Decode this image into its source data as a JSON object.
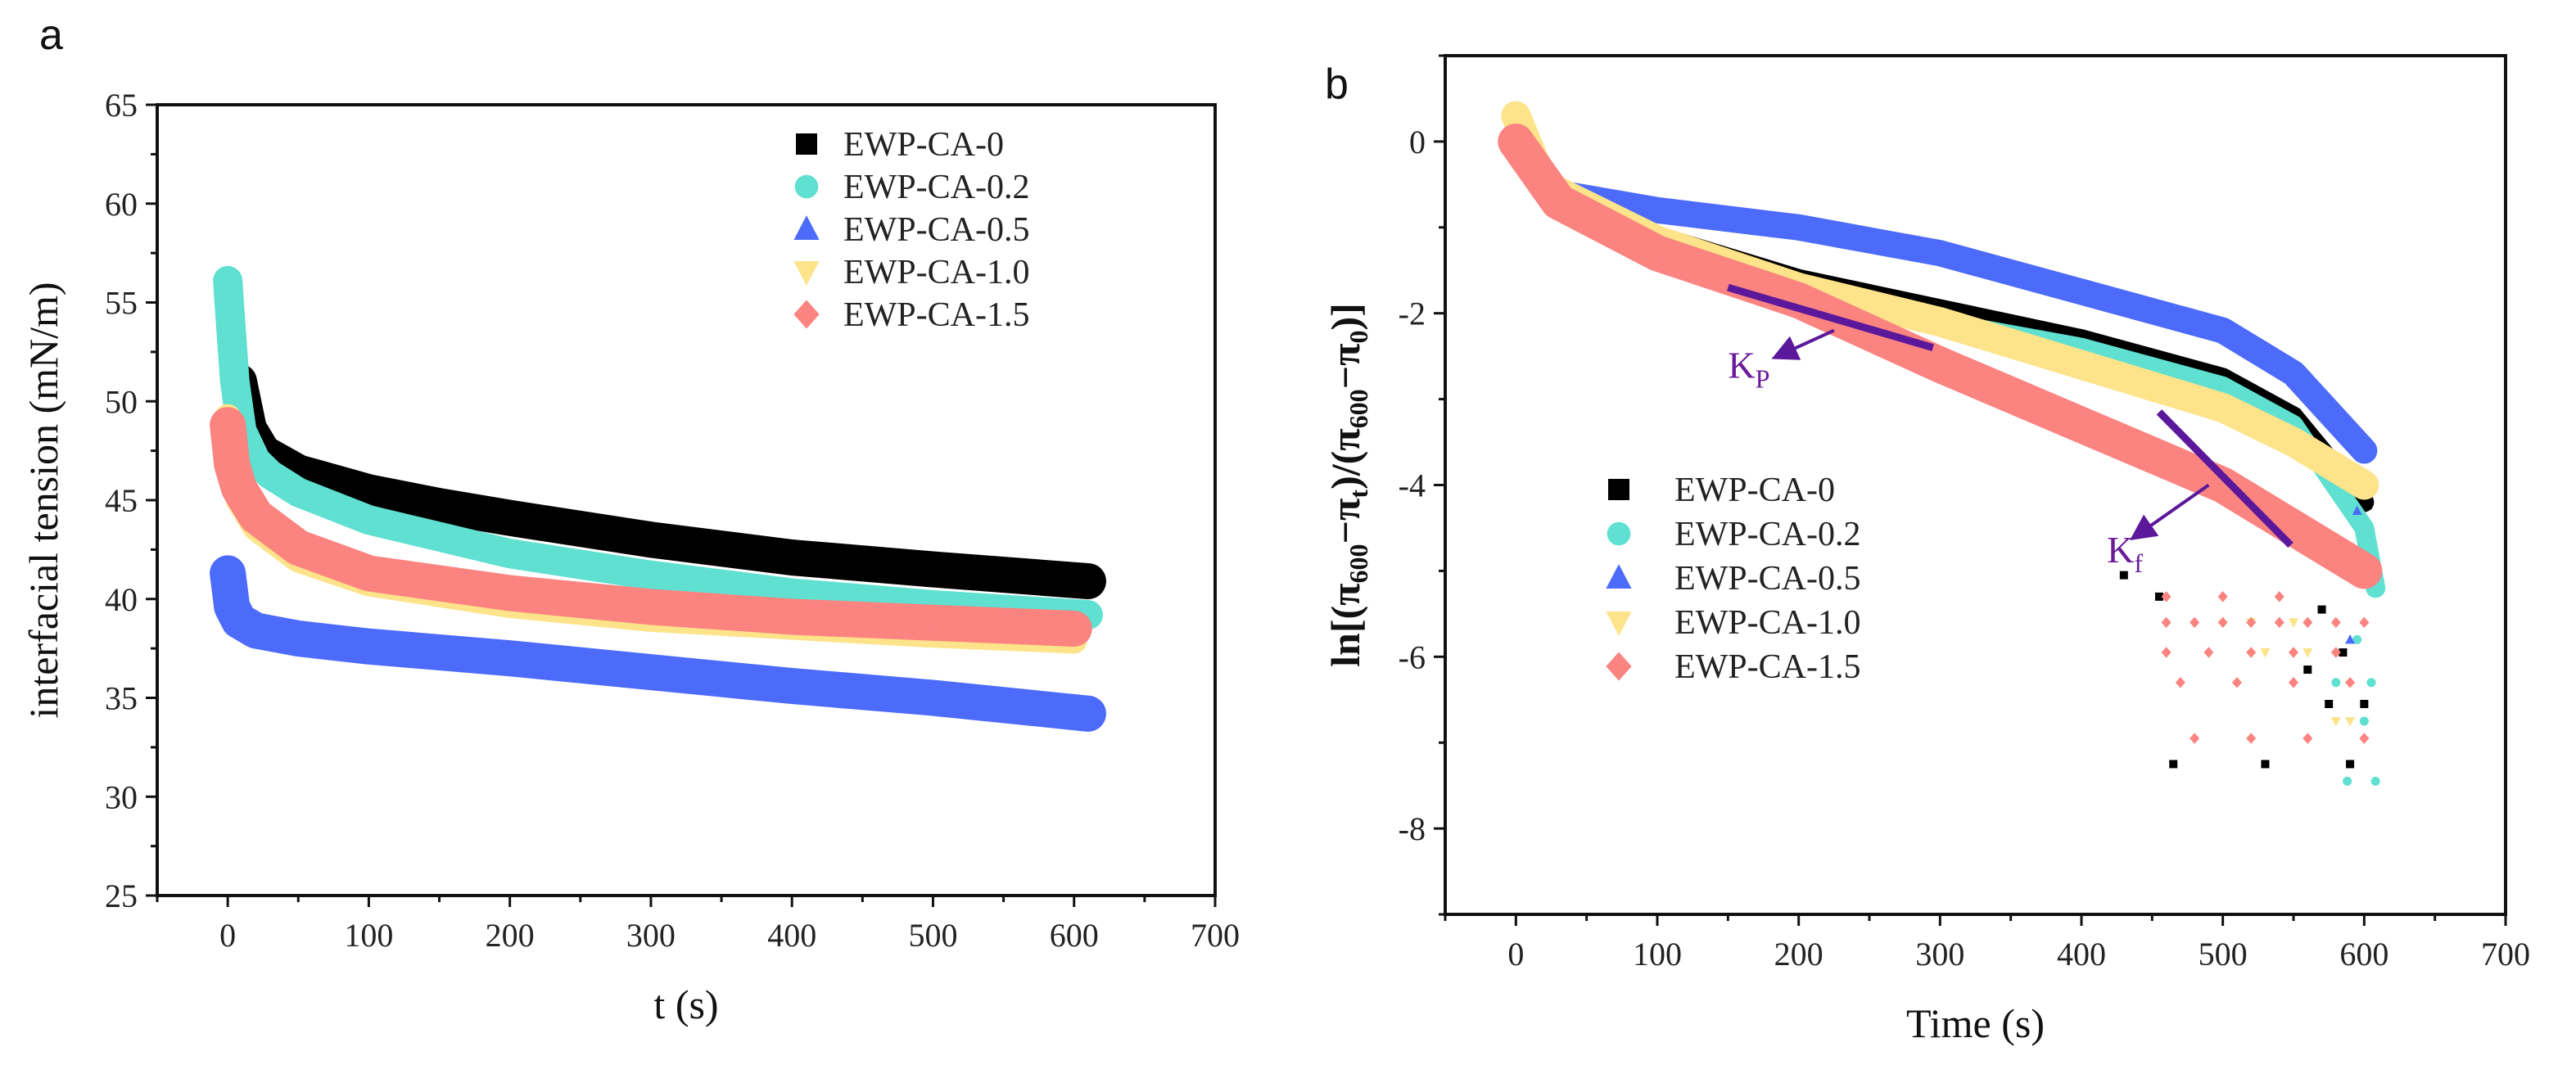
{
  "chart_data": [
    {
      "type": "scatter",
      "panel_label": "a",
      "xlabel": "t (s)",
      "ylabel": "interfacial tension (mN/m)",
      "xlim": [
        -50,
        700
      ],
      "ylim": [
        25,
        65
      ],
      "xticks": [
        0,
        100,
        200,
        300,
        400,
        500,
        600,
        700
      ],
      "yticks": [
        25,
        30,
        35,
        40,
        45,
        50,
        55,
        60,
        65
      ],
      "legend_position": "top-right",
      "series": [
        {
          "name": "EWP-CA-0",
          "color": "#000000",
          "marker": "square",
          "x": [
            8,
            15,
            25,
            50,
            100,
            150,
            200,
            300,
            400,
            500,
            610
          ],
          "y": [
            51,
            48.6,
            47.4,
            46.4,
            45.4,
            44.7,
            44.1,
            43.0,
            42.1,
            41.5,
            40.9
          ]
        },
        {
          "name": "EWP-CA-0.2",
          "color": "#5fe0d0",
          "marker": "circle",
          "x": [
            0,
            2,
            5,
            10,
            20,
            30,
            50,
            100,
            200,
            300,
            400,
            500,
            610
          ],
          "y": [
            56.1,
            54,
            51,
            48.5,
            47,
            46.3,
            45.4,
            44.0,
            42.3,
            41.2,
            40.3,
            39.7,
            39.2
          ]
        },
        {
          "name": "EWP-CA-0.5",
          "color": "#4d6bfa",
          "marker": "triangle-up",
          "x": [
            0,
            3,
            8,
            20,
            50,
            100,
            200,
            300,
            400,
            500,
            610
          ],
          "y": [
            41.3,
            39.6,
            38.9,
            38.4,
            38.0,
            37.6,
            37.0,
            36.3,
            35.6,
            35.0,
            34.2
          ]
        },
        {
          "name": "EWP-CA-1.0",
          "color": "#fde38a",
          "marker": "triangle-down",
          "x": [
            0,
            3,
            8,
            20,
            50,
            100,
            200,
            300,
            400,
            500,
            600
          ],
          "y": [
            49.2,
            46.5,
            45.0,
            43.6,
            42.0,
            40.8,
            39.7,
            39.0,
            38.6,
            38.2,
            37.9
          ]
        },
        {
          "name": "EWP-CA-1.5",
          "color": "#fb8380",
          "marker": "diamond",
          "x": [
            0,
            3,
            8,
            20,
            50,
            100,
            200,
            300,
            400,
            500,
            600
          ],
          "y": [
            48.8,
            46.8,
            45.6,
            44.2,
            42.6,
            41.3,
            40.3,
            39.6,
            39.1,
            38.8,
            38.5
          ]
        }
      ]
    },
    {
      "type": "scatter",
      "panel_label": "b",
      "xlabel": "Time (s)",
      "ylabel_parts": [
        "ln[(π",
        "600",
        "−π",
        "t",
        ")/(π",
        "600",
        "−π",
        "0",
        ")]"
      ],
      "xlim": [
        -50,
        700
      ],
      "ylim": [
        -9,
        1
      ],
      "xticks": [
        0,
        100,
        200,
        300,
        400,
        500,
        600,
        700
      ],
      "yticks": [
        -8,
        -6,
        -4,
        -2,
        0
      ],
      "legend_position": "center-left",
      "series": [
        {
          "name": "EWP-CA-0",
          "color": "#000000",
          "marker": "square",
          "x": [
            0,
            20,
            50,
            100,
            200,
            300,
            400,
            500,
            550,
            600
          ],
          "y": [
            0,
            -0.5,
            -0.8,
            -1.1,
            -1.6,
            -1.95,
            -2.3,
            -2.75,
            -3.2,
            -4.2
          ],
          "tail_x": [
            430,
            455,
            465,
            530,
            560,
            575,
            590,
            600,
            570,
            585
          ],
          "tail_y": [
            -5.05,
            -5.3,
            -7.25,
            -7.25,
            -6.15,
            -6.55,
            -7.25,
            -6.55,
            -5.45,
            -5.95
          ]
        },
        {
          "name": "EWP-CA-0.2",
          "color": "#5fe0d0",
          "marker": "circle",
          "x": [
            0,
            20,
            100,
            200,
            300,
            400,
            500,
            550,
            600,
            608
          ],
          "y": [
            0,
            -0.5,
            -1.2,
            -1.75,
            -2.1,
            -2.4,
            -2.85,
            -3.3,
            -4.5,
            -5.2
          ],
          "tail_x": [
            588,
            608,
            600,
            605,
            580,
            595
          ],
          "tail_y": [
            -7.45,
            -7.45,
            -6.75,
            -6.3,
            -6.3,
            -5.8
          ]
        },
        {
          "name": "EWP-CA-0.5",
          "color": "#4d6bfa",
          "marker": "triangle-up",
          "x": [
            0,
            30,
            100,
            200,
            300,
            400,
            500,
            550,
            600
          ],
          "y": [
            0,
            -0.6,
            -0.8,
            -1.0,
            -1.3,
            -1.75,
            -2.2,
            -2.7,
            -3.6
          ],
          "tail_x": [
            595,
            600,
            590
          ],
          "tail_y": [
            -4.3,
            -5.0,
            -5.8
          ]
        },
        {
          "name": "EWP-CA-1.0",
          "color": "#fde38a",
          "marker": "triangle-down",
          "x": [
            0,
            20,
            100,
            200,
            300,
            400,
            500,
            550,
            600
          ],
          "y": [
            0.3,
            -0.5,
            -1.15,
            -1.7,
            -2.1,
            -2.6,
            -3.1,
            -3.5,
            -4.0
          ],
          "tail_x": [
            530,
            560,
            580,
            520,
            550,
            590
          ],
          "tail_y": [
            -5.95,
            -5.95,
            -6.75,
            -5.6,
            -5.6,
            -6.75
          ]
        },
        {
          "name": "EWP-CA-1.5",
          "color": "#fb8380",
          "marker": "diamond",
          "x": [
            0,
            30,
            100,
            200,
            300,
            400,
            500,
            600
          ],
          "y": [
            0,
            -0.7,
            -1.3,
            -1.85,
            -2.6,
            -3.3,
            -4.0,
            -5.0
          ],
          "tail_x": [
            460,
            480,
            500,
            520,
            540,
            560,
            580,
            600,
            460,
            490,
            520,
            550,
            580,
            470,
            510,
            550,
            590,
            480,
            520,
            560,
            600,
            460,
            500,
            540
          ],
          "tail_y": [
            -5.6,
            -5.6,
            -5.6,
            -5.6,
            -5.6,
            -5.6,
            -5.6,
            -5.6,
            -5.95,
            -5.95,
            -5.95,
            -5.95,
            -5.95,
            -6.3,
            -6.3,
            -6.3,
            -6.3,
            -6.95,
            -6.95,
            -6.95,
            -6.95,
            -5.3,
            -5.3,
            -5.3
          ]
        }
      ],
      "annotations": [
        {
          "label": "K",
          "subscript": "P",
          "color": "#5b189b",
          "line": [
            [
              150,
              -1.7
            ],
            [
              295,
              -2.4
            ]
          ],
          "arrow": [
            [
              225,
              -2.2
            ],
            [
              185,
              -2.5
            ]
          ],
          "text_at": [
            150,
            -2.75
          ]
        },
        {
          "label": "K",
          "subscript": "f",
          "color": "#5b189b",
          "line": [
            [
              455,
              -3.15
            ],
            [
              548,
              -4.7
            ]
          ],
          "arrow": [
            [
              490,
              -4.0
            ],
            [
              438,
              -4.6
            ]
          ],
          "text_at": [
            418,
            -4.9
          ]
        }
      ]
    }
  ]
}
